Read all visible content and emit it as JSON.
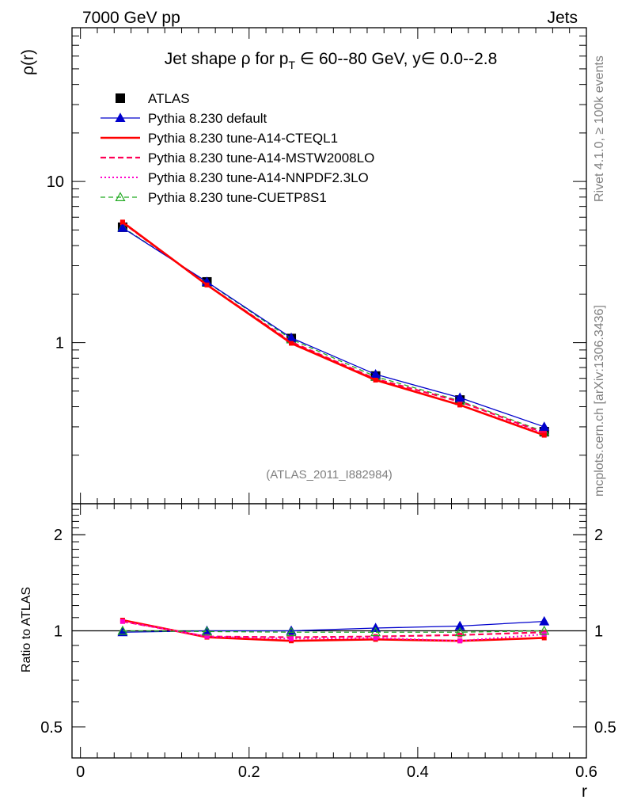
{
  "header": {
    "left": "7000 GeV pp",
    "right": "Jets"
  },
  "side_labels": {
    "rivet": "Rivet 4.1.0, ≥ 100k events",
    "mcplots": "mcplots.cern.ch [arXiv:1306.3436]"
  },
  "chart_data": [
    {
      "type": "line",
      "title_parts": {
        "prefix": "Jet shape ρ for p",
        "subscript": "T",
        "suffix": " ∈ 60--80 GeV, y∈ 0.0--2.8"
      },
      "ylabel": "ρ(r)",
      "yscale": "log",
      "ylim": [
        0.1,
        90
      ],
      "xlim": [
        -0.01,
        0.6
      ],
      "ytick_labels": [
        "1",
        "10"
      ],
      "ytick_values": [
        1,
        10
      ],
      "watermark": "(ATLAS_2011_I882984)",
      "x": [
        0.05,
        0.15,
        0.25,
        0.35,
        0.45,
        0.55
      ],
      "series": [
        {
          "name": "ATLAS",
          "style": "data",
          "color": "#000000",
          "values": [
            5.2,
            2.38,
            1.06,
            0.62,
            0.44,
            0.28
          ]
        },
        {
          "name": "Pythia 8.230 default",
          "style": "solid-thin",
          "marker": "triangle",
          "color": "#0000cc",
          "values": [
            5.15,
            2.38,
            1.07,
            0.635,
            0.455,
            0.3
          ]
        },
        {
          "name": "Pythia 8.230 tune-A14-CTEQL1",
          "style": "solid-thick",
          "color": "#ff0000",
          "values": [
            5.6,
            2.28,
            0.99,
            0.585,
            0.41,
            0.266
          ]
        },
        {
          "name": "Pythia 8.230 tune-A14-MSTW2008LO",
          "style": "dashed",
          "color": "#ff0055",
          "values": [
            5.55,
            2.28,
            1.01,
            0.595,
            0.43,
            0.275
          ]
        },
        {
          "name": "Pythia 8.230 tune-A14-NNPDF2.3LO",
          "style": "dotted",
          "color": "#ff00cc",
          "values": [
            5.55,
            2.29,
            1.0,
            0.59,
            0.41,
            0.272
          ]
        },
        {
          "name": "Pythia 8.230 tune-CUETP8S1",
          "style": "dashed-green",
          "marker": "open-triangle",
          "color": "#22aa22",
          "values": [
            5.2,
            2.37,
            1.05,
            0.615,
            0.435,
            0.28
          ]
        }
      ]
    },
    {
      "type": "line",
      "ylabel": "Ratio to ATLAS",
      "xlabel": "r",
      "yscale": "log",
      "ylim": [
        0.4,
        2.5
      ],
      "xlim": [
        -0.01,
        0.6
      ],
      "ytick_labels": [
        "0.5",
        "1",
        "2"
      ],
      "ytick_values": [
        0.5,
        1,
        2
      ],
      "xtick_labels": [
        "0",
        "0.2",
        "0.4",
        "0.6"
      ],
      "xtick_values": [
        0,
        0.2,
        0.4,
        0.6
      ],
      "x": [
        0.05,
        0.15,
        0.25,
        0.35,
        0.45,
        0.55
      ],
      "series": [
        {
          "name": "Pythia 8.230 default",
          "color": "#0000cc",
          "values": [
            0.99,
            1.0,
            1.0,
            1.02,
            1.035,
            1.07
          ]
        },
        {
          "name": "Pythia 8.230 tune-A14-CTEQL1",
          "color": "#ff0000",
          "values": [
            1.08,
            0.955,
            0.93,
            0.94,
            0.93,
            0.95
          ]
        },
        {
          "name": "Pythia 8.230 tune-A14-MSTW2008LO",
          "color": "#ff0055",
          "values": [
            1.07,
            0.96,
            0.955,
            0.96,
            0.97,
            0.99
          ]
        },
        {
          "name": "Pythia 8.230 tune-A14-NNPDF2.3LO",
          "color": "#ff00cc",
          "values": [
            1.07,
            0.96,
            0.945,
            0.95,
            0.93,
            0.975
          ]
        },
        {
          "name": "Pythia 8.230 tune-CUETP8S1",
          "color": "#22aa22",
          "values": [
            1.0,
            0.995,
            0.99,
            0.99,
            0.99,
            1.0
          ]
        }
      ]
    }
  ]
}
